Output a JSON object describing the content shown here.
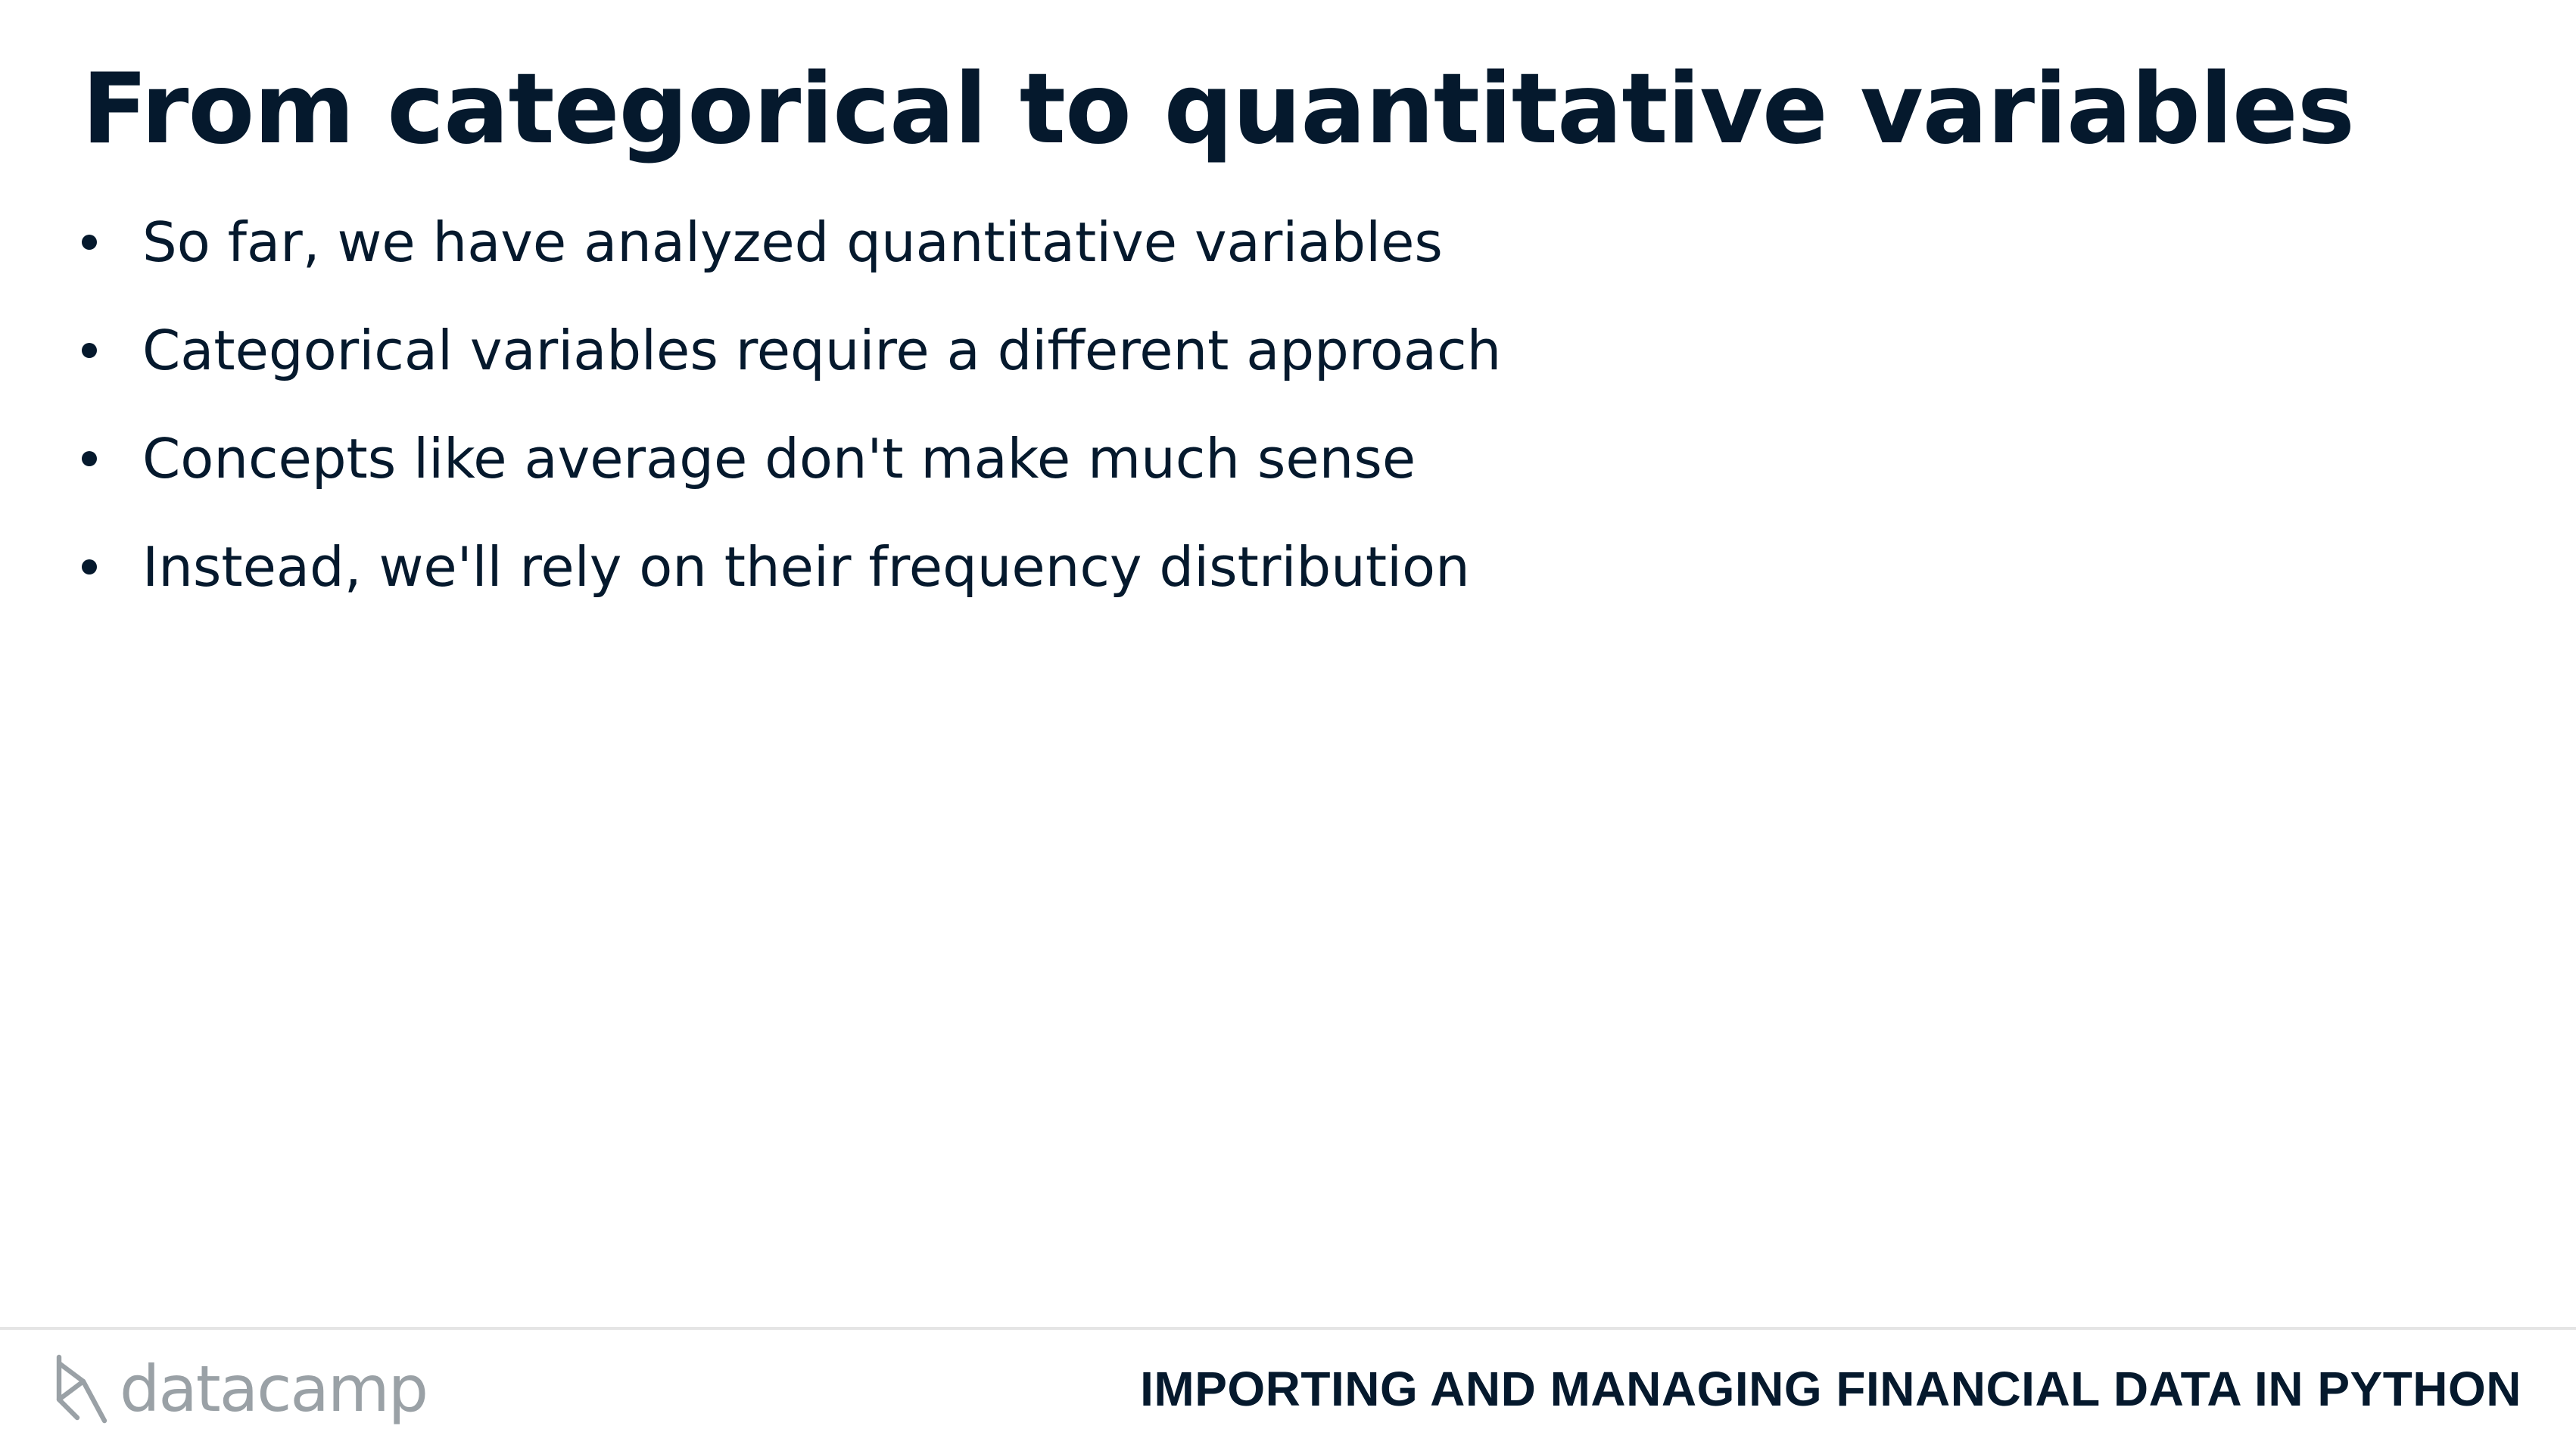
{
  "slide": {
    "title": "From categorical to quantitative variables",
    "bullets": [
      "So far, we have analyzed quantitative variables",
      "Categorical variables require a different approach",
      "Concepts like average don't make much sense",
      "Instead, we'll rely on their frequency distribution"
    ]
  },
  "footer": {
    "logo_text": "datacamp",
    "logo_icon": "datacamp-logo-icon",
    "course_title": "IMPORTING AND MANAGING FINANCIAL DATA IN PYTHON"
  },
  "colors": {
    "text": "#05192d",
    "logo": "#9aa1a6",
    "rule": "#e5e5e5",
    "background": "#ffffff"
  }
}
